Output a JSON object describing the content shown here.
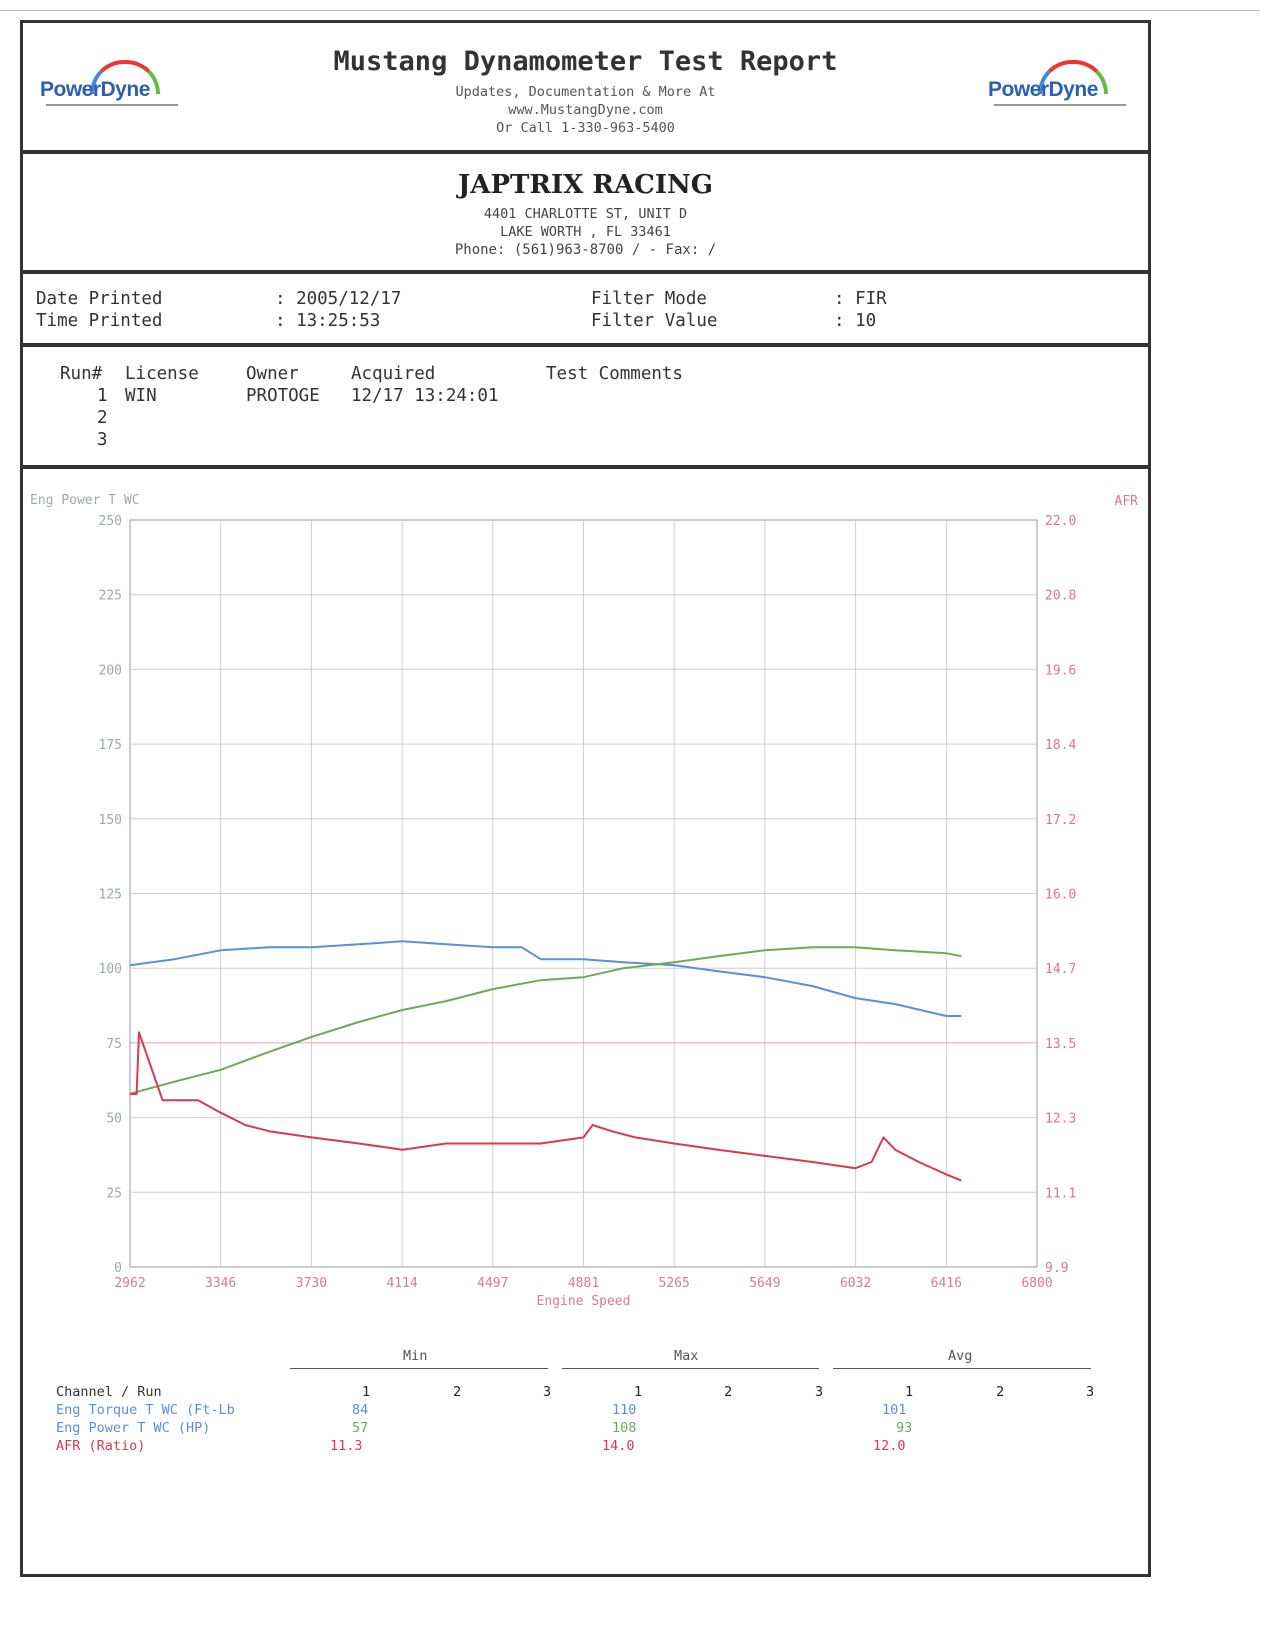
{
  "header": {
    "title": "Mustang Dynamometer Test Report",
    "line1": "Updates, Documentation & More At",
    "line2": "www.MustangDyne.com",
    "line3": "Or Call 1-330-963-5400",
    "logo_left": "PowerDyne",
    "logo_right": "PowerDyne"
  },
  "business": {
    "name": "JAPTRIX RACING",
    "address1": "4401 CHARLOTTE ST, UNIT D",
    "address2": "LAKE WORTH , FL  33461",
    "phone_line": "Phone: (561)963-8700 /   - Fax:   /"
  },
  "meta": {
    "date_label": "Date Printed",
    "date_value": ": 2005/12/17",
    "time_label": "Time Printed",
    "time_value": ": 13:25:53",
    "filter_mode_label": "Filter Mode",
    "filter_mode_value": ": FIR",
    "filter_value_label": "Filter Value",
    "filter_value_value": ": 10"
  },
  "runs": {
    "headers": [
      "Run#",
      "License",
      "Owner",
      "Acquired",
      "Test Comments"
    ],
    "rows": [
      {
        "run": "1",
        "license": "WIN",
        "owner": "PROTOGE",
        "acquired": "12/17 13:24:01",
        "comments": ""
      },
      {
        "run": "2",
        "license": "",
        "owner": "",
        "acquired": "",
        "comments": ""
      },
      {
        "run": "3",
        "license": "",
        "owner": "",
        "acquired": "",
        "comments": ""
      }
    ]
  },
  "chart_data": {
    "type": "line",
    "title": "",
    "xlabel": "Engine Speed",
    "ylabel_left": "Eng Power T WC",
    "ylabel_right": "AFR",
    "xlim": [
      2962,
      6800
    ],
    "x_ticks": [
      "2962",
      "3346",
      "3730",
      "4114",
      "4497",
      "4881",
      "5265",
      "5649",
      "6032",
      "6416",
      "6800"
    ],
    "ylim_left": [
      0,
      250
    ],
    "y_ticks_left": [
      "0",
      "25",
      "50",
      "75",
      "100",
      "125",
      "150",
      "175",
      "200",
      "225",
      "250"
    ],
    "ylim_right": [
      9.9,
      22.0
    ],
    "y_ticks_right": [
      "9.9",
      "11.1",
      "12.3",
      "13.5",
      "14.7",
      "16.0",
      "17.2",
      "18.4",
      "19.6",
      "20.8",
      "22.0"
    ],
    "grid": true,
    "colors": {
      "torque": "#5b8fd6",
      "power": "#6fa85a",
      "afr": "#d83a4e",
      "axis_left": "#8aa",
      "axis_right": "#d57"
    },
    "series": [
      {
        "name": "Eng Torque T WC (Ft-Lb",
        "axis": "left",
        "x": [
          2962,
          3150,
          3346,
          3550,
          3730,
          3930,
          4114,
          4300,
          4497,
          4620,
          4700,
          4881,
          5050,
          5265,
          5450,
          5649,
          5850,
          6032,
          6200,
          6416,
          6480
        ],
        "y": [
          101,
          103,
          106,
          107,
          107,
          108,
          109,
          108,
          107,
          107,
          103,
          103,
          102,
          101,
          99,
          97,
          94,
          90,
          88,
          84,
          84
        ]
      },
      {
        "name": "Eng Power T WC (HP)",
        "axis": "left",
        "x": [
          2962,
          3150,
          3346,
          3550,
          3730,
          3930,
          4114,
          4300,
          4497,
          4700,
          4881,
          5050,
          5265,
          5450,
          5649,
          5850,
          6032,
          6200,
          6416,
          6480
        ],
        "y": [
          58,
          62,
          66,
          72,
          77,
          82,
          86,
          89,
          93,
          96,
          97,
          100,
          102,
          104,
          106,
          107,
          107,
          106,
          105,
          104
        ]
      },
      {
        "name": "AFR (Ratio)",
        "axis": "right",
        "x": [
          2962,
          2990,
          3000,
          3100,
          3250,
          3346,
          3450,
          3550,
          3730,
          3930,
          4114,
          4300,
          4497,
          4700,
          4881,
          4920,
          5000,
          5100,
          5265,
          5450,
          5649,
          5850,
          6032,
          6100,
          6150,
          6200,
          6300,
          6416,
          6480
        ],
        "y": [
          12.7,
          12.7,
          13.7,
          12.6,
          12.6,
          12.4,
          12.2,
          12.1,
          12.0,
          11.9,
          11.8,
          11.9,
          11.9,
          11.9,
          12.0,
          12.2,
          12.1,
          12.0,
          11.9,
          11.8,
          11.7,
          11.6,
          11.5,
          11.6,
          12.0,
          11.8,
          11.6,
          11.4,
          11.3
        ]
      }
    ]
  },
  "summary": {
    "groups": [
      "Min",
      "Max",
      "Avg"
    ],
    "channel_header": "Channel / Run",
    "run_cols": [
      "1",
      "2",
      "3"
    ],
    "rows": [
      {
        "channel": "Eng Torque T WC (Ft-Lb",
        "min": [
          "84",
          "",
          ""
        ],
        "max": [
          "110",
          "",
          ""
        ],
        "avg": [
          "101",
          "",
          ""
        ]
      },
      {
        "channel": "Eng Power T WC (HP)",
        "min": [
          "57",
          "",
          ""
        ],
        "max": [
          "108",
          "",
          ""
        ],
        "avg": [
          "93",
          "",
          ""
        ]
      },
      {
        "channel": "AFR (Ratio)",
        "min": [
          "11.3",
          "",
          ""
        ],
        "max": [
          "14.0",
          "",
          ""
        ],
        "avg": [
          "12.0",
          "",
          ""
        ]
      }
    ]
  }
}
